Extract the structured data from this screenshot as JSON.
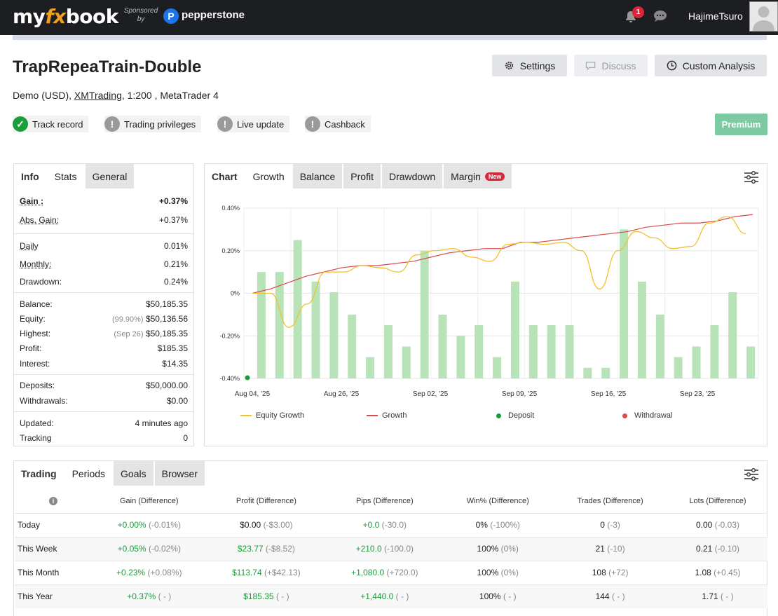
{
  "topbar": {
    "logo_my": "my",
    "logo_fx": "fx",
    "logo_book": "book",
    "sponsored": "Sponsored",
    "by": "by",
    "sponsor_name": "pepperstone",
    "notifications_count": "1",
    "username": "HajimeTsuro"
  },
  "header": {
    "title": "TrapRepeaTrain-Double",
    "settings_label": "Settings",
    "discuss_label": "Discuss",
    "custom_analysis_label": "Custom Analysis",
    "subtitle_prefix": "Demo (USD), ",
    "broker": "XMTrading",
    "subtitle_suffix": ", 1:200 , MetaTrader 4",
    "premium_label": "Premium"
  },
  "badges": [
    {
      "label": "Track record",
      "status": "ok"
    },
    {
      "label": "Trading privileges",
      "status": "warn"
    },
    {
      "label": "Live update",
      "status": "warn"
    },
    {
      "label": "Cashback",
      "status": "warn"
    }
  ],
  "info_panel": {
    "tabs": [
      "Info",
      "Stats",
      "General"
    ],
    "gain_label": "Gain :",
    "gain_value": "+0.37%",
    "abs_gain_label": "Abs. Gain:",
    "abs_gain_value": "+0.37%",
    "daily_label": "Daily",
    "daily_value": "0.01%",
    "monthly_label": "Monthly:",
    "monthly_value": "0.21%",
    "drawdown_label": "Drawdown:",
    "drawdown_value": "0.24%",
    "balance_label": "Balance:",
    "balance_value": "$50,185.35",
    "equity_label": "Equity:",
    "equity_pct": "(99.90%)",
    "equity_value": "$50,136.56",
    "highest_label": "Highest:",
    "highest_date": "(Sep 26)",
    "highest_value": "$50,185.35",
    "profit_label": "Profit:",
    "profit_value": "$185.35",
    "interest_label": "Interest:",
    "interest_value": "$14.35",
    "deposits_label": "Deposits:",
    "deposits_value": "$50,000.00",
    "withdrawals_label": "Withdrawals:",
    "withdrawals_value": "$0.00",
    "updated_label": "Updated:",
    "updated_value": "4 minutes ago",
    "tracking_label": "Tracking",
    "tracking_value": "0"
  },
  "chart_panel": {
    "tabs": [
      "Chart",
      "Growth",
      "Balance",
      "Profit",
      "Drawdown",
      "Margin"
    ],
    "new_badge": "New"
  },
  "chart_data": {
    "type": "bar",
    "title": "",
    "xlabel": "",
    "ylabel": "",
    "ylim": [
      -0.4,
      0.4
    ],
    "y_ticks": [
      "0.40%",
      "0.20%",
      "0%",
      "-0.20%",
      "-0.40%"
    ],
    "x_ticks": [
      "Aug 04, '25",
      "Aug 26, '25",
      "Sep 02, '25",
      "Sep 09, '25",
      "Sep 16, '25",
      "Sep 23, '25"
    ],
    "grid": true,
    "legend": [
      "Equity Growth",
      "Growth",
      "Deposit",
      "Withdrawal"
    ],
    "colors": {
      "equity": "#f2c12e",
      "growth": "#d94a4a",
      "deposit": "#1a9e3a",
      "withdrawal": "#d94a4a",
      "bars": "#b8e3b8"
    },
    "bars": [
      0.1,
      0.1,
      0.25,
      0.055,
      0.005,
      -0.1,
      -0.3,
      -0.15,
      -0.25,
      0.2,
      -0.1,
      -0.2,
      -0.15,
      -0.3,
      0.055,
      -0.15,
      -0.15,
      -0.15,
      -0.35,
      -0.35,
      0.3,
      0.055,
      -0.1,
      -0.3,
      -0.25,
      -0.15,
      0.005,
      -0.25
    ],
    "growth": [
      0.0,
      0.02,
      0.05,
      0.08,
      0.1,
      0.12,
      0.13,
      0.13,
      0.14,
      0.15,
      0.17,
      0.19,
      0.2,
      0.21,
      0.21,
      0.24,
      0.24,
      0.25,
      0.26,
      0.27,
      0.28,
      0.29,
      0.31,
      0.32,
      0.33,
      0.33,
      0.34,
      0.36,
      0.37
    ],
    "equity_growth": [
      0.0,
      0.0,
      -0.16,
      -0.05,
      0.1,
      0.1,
      0.13,
      0.12,
      0.1,
      0.18,
      0.2,
      0.21,
      0.17,
      0.15,
      0.23,
      0.24,
      0.23,
      0.24,
      0.2,
      0.02,
      0.2,
      0.29,
      0.26,
      0.21,
      0.22,
      0.33,
      0.36,
      0.28
    ],
    "deposit_points": [
      {
        "x": 0,
        "y": -0.4
      }
    ]
  },
  "periods_panel": {
    "tabs": [
      "Trading",
      "Periods",
      "Goals",
      "Browser"
    ],
    "columns": [
      "Gain (Difference)",
      "Profit (Difference)",
      "Pips (Difference)",
      "Win% (Difference)",
      "Trades (Difference)",
      "Lots (Difference)"
    ],
    "rows": [
      {
        "period": "Today",
        "gain": "+0.00%",
        "gain_diff": "(-0.01%)",
        "profit": "$0.00",
        "profit_diff": "(-$3.00)",
        "pips": "+0.0",
        "pips_diff": "(-30.0)",
        "win": "0%",
        "win_diff": "(-100%)",
        "trades": "0",
        "trades_diff": "(-3)",
        "lots": "0.00",
        "lots_diff": "(-0.03)"
      },
      {
        "period": "This Week",
        "gain": "+0.05%",
        "gain_diff": "(-0.02%)",
        "profit": "$23.77",
        "profit_diff": "(-$8.52)",
        "pips": "+210.0",
        "pips_diff": "(-100.0)",
        "win": "100%",
        "win_diff": "(0%)",
        "trades": "21",
        "trades_diff": "(-10)",
        "lots": "0.21",
        "lots_diff": "(-0.10)"
      },
      {
        "period": "This Month",
        "gain": "+0.23%",
        "gain_diff": "(+0.08%)",
        "profit": "$113.74",
        "profit_diff": "(+$42.13)",
        "pips": "+1,080.0",
        "pips_diff": "(+720.0)",
        "win": "100%",
        "win_diff": "(0%)",
        "trades": "108",
        "trades_diff": "(+72)",
        "lots": "1.08",
        "lots_diff": "(+0.45)"
      },
      {
        "period": "This Year",
        "gain": "+0.37%",
        "gain_diff": "( - )",
        "profit": "$185.35",
        "profit_diff": "( - )",
        "pips": "+1,440.0",
        "pips_diff": "( - )",
        "win": "100%",
        "win_diff": "( - )",
        "trades": "144",
        "trades_diff": "( - )",
        "lots": "1.71",
        "lots_diff": "( - )"
      }
    ]
  }
}
